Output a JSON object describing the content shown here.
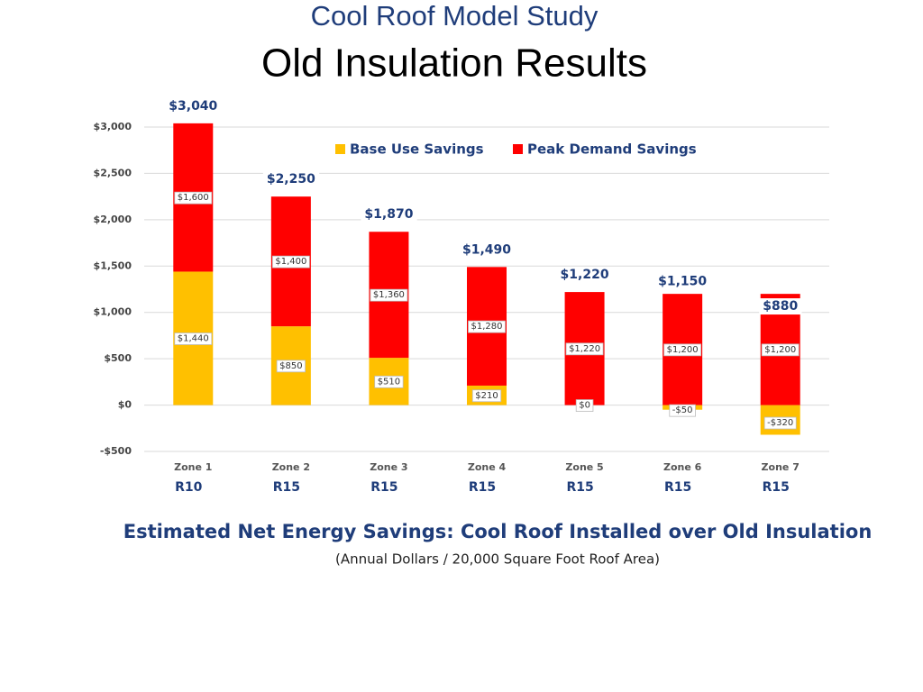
{
  "chart_data": {
    "type": "stacked-bar",
    "title": "Cool Roof Model Study",
    "subtitle": "Old Insulation Results",
    "caption": "Estimated Net Energy Savings: Cool Roof Installed over Old Insulation",
    "caption_note": "(Annual Dollars / 20,000 Square Foot Roof Area)",
    "categories": [
      "Zone 1",
      "Zone 2",
      "Zone 3",
      "Zone 4",
      "Zone 5",
      "Zone 6",
      "Zone 7"
    ],
    "insulation": [
      "R10",
      "R15",
      "R15",
      "R15",
      "R15",
      "R15",
      "R15"
    ],
    "series": [
      {
        "name": "Base Use Savings",
        "color": "#ffc000",
        "values": [
          1440,
          850,
          510,
          210,
          0,
          -50,
          -320
        ],
        "value_labels": [
          "$1,440",
          "$850",
          "$510",
          "$210",
          "$0",
          "-$50",
          "-$320"
        ]
      },
      {
        "name": "Peak Demand Savings",
        "color": "#ff0000",
        "values": [
          1600,
          1400,
          1360,
          1280,
          1220,
          1200,
          1200
        ],
        "value_labels": [
          "$1,600",
          "$1,400",
          "$1,360",
          "$1,280",
          "$1,220",
          "$1,200",
          "$1,200"
        ]
      }
    ],
    "totals": [
      3040,
      2250,
      1870,
      1490,
      1220,
      1150,
      880
    ],
    "total_labels": [
      "$3,040",
      "$2,250",
      "$1,870",
      "$1,490",
      "$1,220",
      "$1,150",
      "$880"
    ],
    "ylim": [
      -500,
      3000
    ],
    "yticks": [
      {
        "value": -500,
        "label": "-$500"
      },
      {
        "value": 0,
        "label": "$0"
      },
      {
        "value": 500,
        "label": "$500"
      },
      {
        "value": 1000,
        "label": "$1,000"
      },
      {
        "value": 1500,
        "label": "$1,500"
      },
      {
        "value": 2000,
        "label": "$2,000"
      },
      {
        "value": 2500,
        "label": "$2,500"
      },
      {
        "value": 3000,
        "label": "$3,000"
      }
    ],
    "grid": true,
    "legend": "top"
  }
}
